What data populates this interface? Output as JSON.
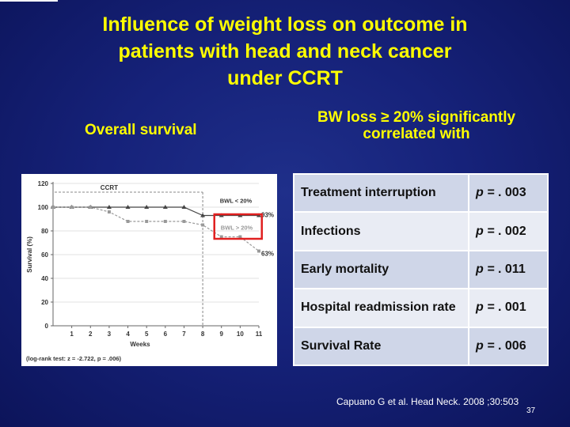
{
  "slide": {
    "title_lines": [
      "Influence of weight loss on outcome in",
      "patients with head and neck cancer",
      "under CCRT"
    ],
    "overall_survival_label": "Overall survival",
    "bw_heading_lines": [
      "BW loss ≥ 20% significantly",
      "correlated with"
    ],
    "citation": "Capuano G et al. Head Neck. 2008 ;30:503",
    "page_number": "37"
  },
  "table": {
    "rows": [
      {
        "label": "Treatment interruption",
        "p_prefix": "p =",
        "p_value": ". 003"
      },
      {
        "label": "Infections",
        "p_prefix": "p =",
        "p_value": ". 002"
      },
      {
        "label": "Early mortality",
        "p_prefix": "p =",
        "p_value": ". 011"
      },
      {
        "label": "Hospital readmission rate",
        "p_prefix": "p =",
        "p_value": ". 001"
      },
      {
        "label": "Survival Rate",
        "p_prefix": "p =",
        "p_value": ". 006"
      }
    ]
  },
  "chart_data": {
    "type": "line",
    "ylabel": "Survival (%)",
    "xlabel": "Weeks",
    "ylim": [
      0,
      120
    ],
    "xlim": [
      0,
      11
    ],
    "y_ticks": [
      0,
      20,
      40,
      60,
      80,
      100,
      120
    ],
    "x_ticks": [
      1,
      2,
      3,
      4,
      5,
      6,
      7,
      8,
      9,
      10,
      11
    ],
    "ccrt_label": "CCRT",
    "ccrt_end_week": 8,
    "footnote": "(log-rank test: z = -2.722, p = .006)",
    "highlight_color": "#e02020",
    "series": [
      {
        "name": "BWL < 20%",
        "end_label": "93%",
        "marker": "triangle",
        "color": "#444444",
        "x": [
          0,
          1,
          2,
          3,
          4,
          5,
          6,
          7,
          8,
          9,
          10,
          11
        ],
        "y": [
          100,
          100,
          100,
          100,
          100,
          100,
          100,
          100,
          93,
          93,
          93,
          93
        ]
      },
      {
        "name": "BWL > 20%",
        "end_label": "63%",
        "marker": "square",
        "color": "#999999",
        "x": [
          0,
          1,
          2,
          3,
          4,
          5,
          6,
          7,
          8,
          9,
          10,
          11
        ],
        "y": [
          100,
          100,
          100,
          96,
          88,
          88,
          88,
          88,
          85,
          75,
          75,
          63
        ]
      }
    ]
  }
}
